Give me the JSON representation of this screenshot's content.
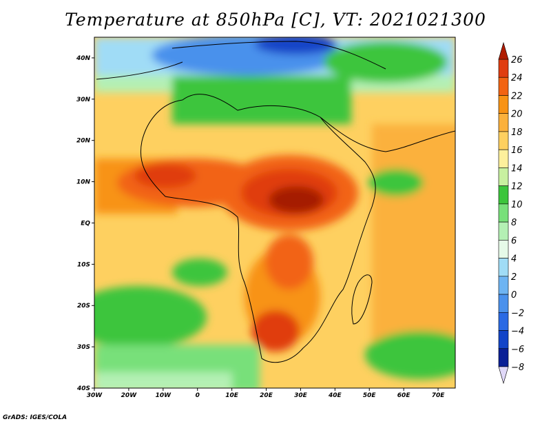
{
  "title": "Temperature at 850hPa [C], VT: 2021021300",
  "credit": "GrADS: IGES/COLA",
  "map": {
    "lon_range": [
      -30,
      75
    ],
    "lat_range": [
      -40,
      45
    ],
    "lon_ticks": [
      {
        "value": -30,
        "label": "30W"
      },
      {
        "value": -20,
        "label": "20W"
      },
      {
        "value": -10,
        "label": "10W"
      },
      {
        "value": 0,
        "label": "0"
      },
      {
        "value": 10,
        "label": "10E"
      },
      {
        "value": 20,
        "label": "20E"
      },
      {
        "value": 30,
        "label": "30E"
      },
      {
        "value": 40,
        "label": "40E"
      },
      {
        "value": 50,
        "label": "50E"
      },
      {
        "value": 60,
        "label": "60E"
      },
      {
        "value": 70,
        "label": "70E"
      }
    ],
    "lat_ticks": [
      {
        "value": 40,
        "label": "40N"
      },
      {
        "value": 30,
        "label": "30N"
      },
      {
        "value": 20,
        "label": "20N"
      },
      {
        "value": 10,
        "label": "10N"
      },
      {
        "value": 0,
        "label": "EQ"
      },
      {
        "value": -10,
        "label": "10S"
      },
      {
        "value": -20,
        "label": "20S"
      },
      {
        "value": -30,
        "label": "30S"
      },
      {
        "value": -40,
        "label": "40S"
      }
    ]
  },
  "colorbar": {
    "levels": [
      26,
      24,
      22,
      20,
      18,
      16,
      14,
      12,
      10,
      8,
      6,
      4,
      2,
      0,
      -2,
      -4,
      -6,
      -8
    ],
    "colors": [
      "#a51e04",
      "#e03d10",
      "#f26412",
      "#f89314",
      "#fbb13c",
      "#fed060",
      "#fdf09c",
      "#c8f0a0",
      "#3cc53c",
      "#78e07a",
      "#b4f0b4",
      "#e6fae8",
      "#a0dcf6",
      "#6eb4f2",
      "#4a91ec",
      "#2a6ae4",
      "#1244c8",
      "#0a1f96",
      "#00106a",
      "#dcd8f4"
    ],
    "top_color": "#b01c00",
    "bottom_color": "#e0d8f8"
  }
}
